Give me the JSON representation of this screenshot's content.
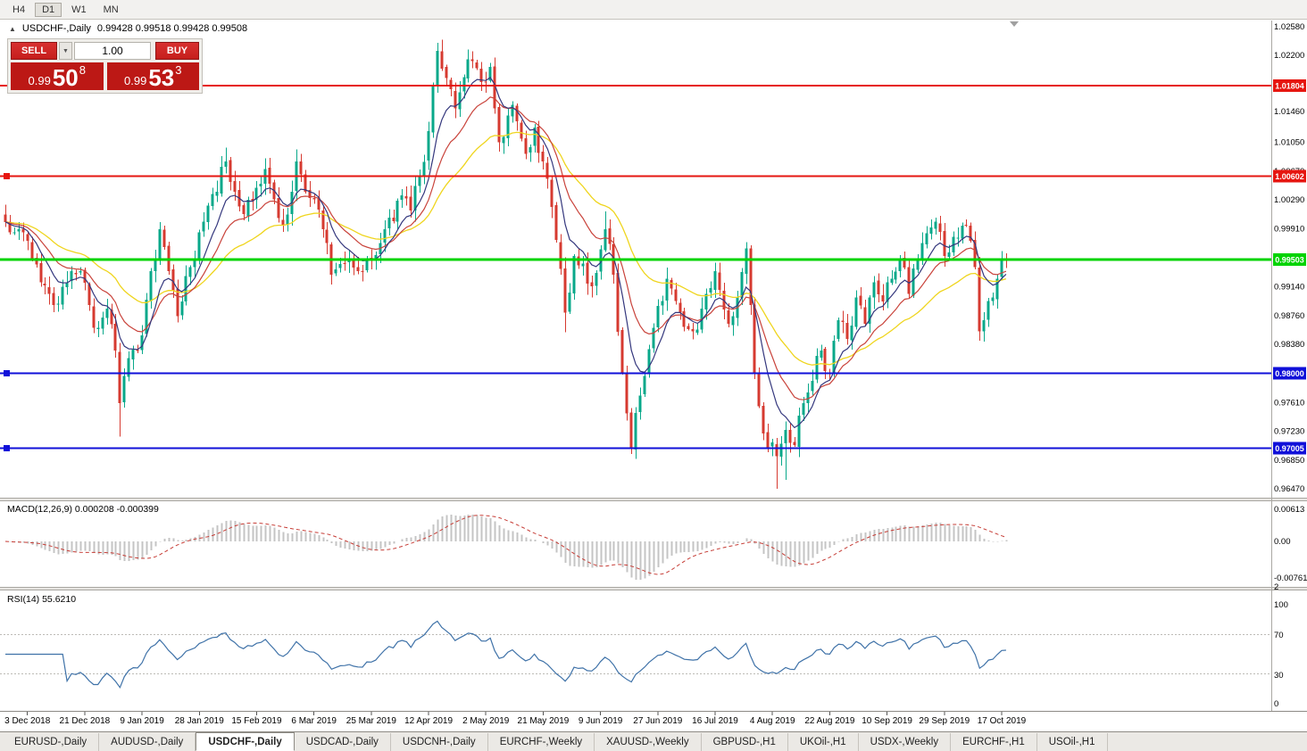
{
  "toolbar": {
    "timeframes": [
      {
        "label": "H4",
        "active": false
      },
      {
        "label": "D1",
        "active": true
      },
      {
        "label": "W1",
        "active": false
      },
      {
        "label": "MN",
        "active": false
      }
    ]
  },
  "chart": {
    "title": "USDCHF-,Daily",
    "ohlc": "0.99428 0.99518 0.99428 0.99508"
  },
  "trade_panel": {
    "sell_label": "SELL",
    "buy_label": "BUY",
    "volume": "1.00",
    "bid": {
      "prefix": "0.99",
      "big": "50",
      "sup": "8"
    },
    "ask": {
      "prefix": "0.99",
      "big": "53",
      "sup": "3"
    }
  },
  "macd_panel": {
    "label": "MACD(12,26,9) 0.000208 -0.000399",
    "axis": {
      "top": "0.00613",
      "zero": "0.00",
      "bottom": "-0.00761",
      "bottom_overflow": "2"
    }
  },
  "rsi_panel": {
    "label": "RSI(14) 55.6210",
    "axis": [
      "100",
      "70",
      "30",
      "0"
    ],
    "levels": [
      70,
      30
    ]
  },
  "tabs": [
    {
      "label": "EURUSD-,Daily",
      "active": false
    },
    {
      "label": "AUDUSD-,Daily",
      "active": false
    },
    {
      "label": "USDCHF-,Daily",
      "active": true
    },
    {
      "label": "USDCAD-,Daily",
      "active": false
    },
    {
      "label": "USDCNH-,Daily",
      "active": false
    },
    {
      "label": "EURCHF-,Weekly",
      "active": false
    },
    {
      "label": "XAUUSD-,Weekly",
      "active": false
    },
    {
      "label": "GBPUSD-,H1",
      "active": false
    },
    {
      "label": "UKOil-,H1",
      "active": false
    },
    {
      "label": "USDX-,Weekly",
      "active": false
    },
    {
      "label": "EURCHF-,H1",
      "active": false
    },
    {
      "label": "USOil-,H1",
      "active": false
    }
  ],
  "colors": {
    "bull_candle": "#08a88a",
    "bear_candle": "#d63a30",
    "ma_slow_yellow": "#efd51e",
    "ma_mid_red": "#c9433b",
    "ma_fast_blue": "#34377d",
    "line_red": "#e61610",
    "line_green": "#00d300",
    "line_blue": "#1010d9",
    "macd_histogram": "#c4c4c4",
    "macd_signal": "#c63c35",
    "rsi_line": "#3f72a8",
    "sell_buy_red": "#c51f1c",
    "price_box_red": "#bc1815"
  },
  "chart_data": {
    "type": "candlestick",
    "symbol": "USDCHF-",
    "period": "Daily",
    "displayed_ohlc": {
      "open": 0.99428,
      "high": 0.99518,
      "low": 0.99428,
      "close": 0.99508
    },
    "price_range_visible": [
      0.9635,
      1.0262
    ],
    "num_candles": 228,
    "candles_per_date_label": 13,
    "price_axis_ticks": [
      {
        "label": "1.02580",
        "value": 1.0258
      },
      {
        "label": "1.02200",
        "value": 1.022
      },
      {
        "label": "1.01460",
        "value": 1.0146
      },
      {
        "label": "1.01050",
        "value": 1.0105
      },
      {
        "label": "1.00670",
        "value": 1.0067
      },
      {
        "label": "1.00290",
        "value": 1.0029
      },
      {
        "label": "0.99910",
        "value": 0.9991
      },
      {
        "label": "0.99140",
        "value": 0.9914
      },
      {
        "label": "0.98760",
        "value": 0.9876
      },
      {
        "label": "0.98380",
        "value": 0.9838
      },
      {
        "label": "0.97610",
        "value": 0.9761
      },
      {
        "label": "0.97230",
        "value": 0.9723
      },
      {
        "label": "0.96850",
        "value": 0.9685
      },
      {
        "label": "0.96470",
        "value": 0.9647
      }
    ],
    "horizontal_lines": [
      {
        "label": "1.01804",
        "price": 1.01804,
        "color": "line_red",
        "width": 2,
        "left_marker": false
      },
      {
        "label": "1.00602",
        "price": 1.00602,
        "color": "line_red",
        "width": 2,
        "left_marker": true
      },
      {
        "label": "0.99503",
        "price": 0.99503,
        "color": "line_green",
        "width": 3,
        "left_marker": false
      },
      {
        "label": "0.98000",
        "price": 0.98,
        "color": "line_blue",
        "width": 2,
        "left_marker": true
      },
      {
        "label": "0.97005",
        "price": 0.97005,
        "color": "line_blue",
        "width": 2,
        "left_marker": true
      }
    ],
    "indicators": [
      {
        "name": "MACD",
        "params": [
          12,
          26,
          9
        ],
        "values_shown": [
          0.000208,
          -0.000399
        ],
        "axis": [
          0.00613,
          0,
          -0.007612
        ]
      },
      {
        "name": "RSI",
        "params": [
          14
        ],
        "value_shown": 55.621,
        "levels": [
          70,
          30
        ],
        "axis": [
          100,
          70,
          30,
          0
        ]
      },
      {
        "name": "moving-averages",
        "colors": [
          "yellow",
          "red",
          "dark-blue"
        ],
        "approx_periods": [
          34,
          16,
          8
        ]
      }
    ],
    "date_labels": [
      "3 Dec 2018",
      "21 Dec 2018",
      "9 Jan 2019",
      "28 Jan 2019",
      "15 Feb 2019",
      "6 Mar 2019",
      "25 Mar 2019",
      "12 Apr 2019",
      "2 May 2019",
      "21 May 2019",
      "9 Jun 2019",
      "27 Jun 2019",
      "16 Jul 2019",
      "4 Aug 2019",
      "22 Aug 2019",
      "10 Sep 2019",
      "29 Sep 2019",
      "17 Oct 2019"
    ],
    "approx_close_path": {
      "candle_index": [
        -5,
        -2,
        0,
        3,
        6,
        9,
        12,
        15,
        18,
        20,
        21,
        23,
        26,
        28,
        30,
        32,
        34,
        37,
        40,
        43,
        45,
        47,
        49,
        52,
        54,
        56,
        58,
        60,
        61,
        63,
        65,
        67,
        69,
        72,
        75,
        78,
        81,
        85,
        87,
        89,
        91,
        93,
        95,
        97,
        100,
        103,
        105,
        107,
        110,
        113,
        115,
        117,
        119,
        122,
        124,
        126,
        128,
        131,
        133,
        135,
        137,
        139,
        142,
        145,
        148,
        151,
        153,
        156,
        159,
        161,
        163,
        164,
        165,
        167,
        170,
        172,
        174,
        176,
        178,
        180,
        182,
        184,
        186,
        188,
        190,
        192,
        194,
        196,
        198,
        200,
        202,
        204,
        206,
        208,
        210,
        212,
        214,
        215,
        216,
        217,
        218,
        220,
        222
      ],
      "close": [
        1.0,
        0.999,
        0.9975,
        0.992,
        0.989,
        0.992,
        0.9935,
        0.986,
        0.9885,
        0.983,
        0.976,
        0.982,
        0.985,
        0.9935,
        0.999,
        0.9935,
        0.9875,
        0.994,
        1.0,
        1.004,
        1.008,
        1.004,
        1.001,
        1.0045,
        1.007,
        1.003,
        0.9995,
        1.004,
        1.008,
        1.004,
        1.003,
        0.999,
        0.993,
        0.9945,
        0.9935,
        0.995,
        0.999,
        1.0035,
        1.0015,
        1.006,
        1.012,
        1.0226,
        1.019,
        1.015,
        1.0215,
        1.0185,
        1.0205,
        1.0105,
        1.0155,
        1.009,
        1.0125,
        1.008,
        1.002,
        0.988,
        0.9955,
        0.9945,
        0.9915,
        0.999,
        0.993,
        0.98,
        0.97,
        0.977,
        0.986,
        0.9925,
        0.988,
        0.9855,
        0.9885,
        0.9935,
        0.9865,
        0.99,
        0.9965,
        0.989,
        0.98,
        0.972,
        0.969,
        0.9725,
        0.9705,
        0.976,
        0.979,
        0.983,
        0.98,
        0.987,
        0.9845,
        0.99,
        0.9865,
        0.992,
        0.9895,
        0.9925,
        0.995,
        0.9905,
        0.995,
        0.9985,
        1.0,
        0.9955,
        0.998,
        0.9995,
        0.9975,
        0.994,
        0.9855,
        0.987,
        0.9895,
        0.9925,
        0.99508
      ]
    },
    "wick_overrides": [
      {
        "i": 21,
        "low": 0.9716
      },
      {
        "i": 30,
        "high": 0.9998
      },
      {
        "i": 45,
        "high": 1.0098
      },
      {
        "i": 54,
        "high": 1.0084
      },
      {
        "i": 61,
        "high": 1.0096
      },
      {
        "i": 93,
        "high": 1.0237
      },
      {
        "i": 100,
        "high": 1.0228
      },
      {
        "i": 122,
        "low": 0.9854
      },
      {
        "i": 131,
        "high": 1.0014
      },
      {
        "i": 137,
        "low": 0.9693
      },
      {
        "i": 170,
        "low": 0.9647
      },
      {
        "i": 172,
        "low": 0.9659
      },
      {
        "i": 216,
        "low": 0.9843
      }
    ]
  }
}
